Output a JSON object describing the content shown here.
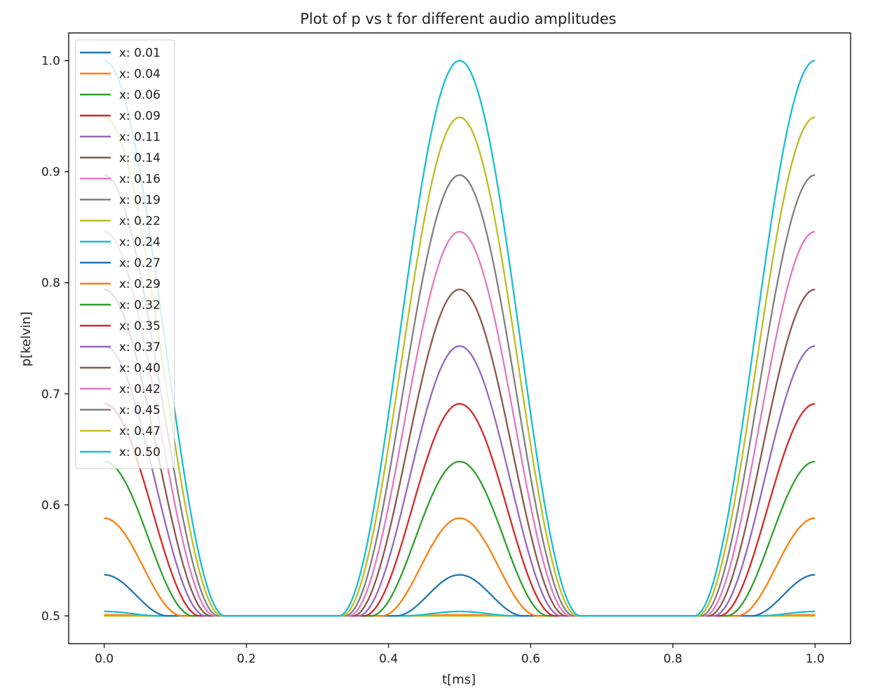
{
  "chart_data": {
    "type": "line",
    "title": "Plot of p vs t for different audio amplitudes",
    "xlabel": "t[ms]",
    "ylabel": "p[kelvin]",
    "xlim": [
      -0.05,
      1.05
    ],
    "ylim": [
      0.475,
      1.025
    ],
    "x_ticks": [
      "0.0",
      "0.2",
      "0.4",
      "0.6",
      "0.8",
      "1.0"
    ],
    "y_ticks": [
      "0.5",
      "0.6",
      "0.7",
      "0.8",
      "0.9",
      "1.0"
    ],
    "grid": false,
    "legend_position": "upper-left",
    "period": 0.5,
    "series": [
      {
        "name": "x: 0.01",
        "color": "#1f77b4",
        "peak": 0.5,
        "half_width": 0.08
      },
      {
        "name": "x: 0.04",
        "color": "#ff7f0e",
        "peak": 0.501,
        "half_width": 0.09
      },
      {
        "name": "x: 0.06",
        "color": "#2ca02c",
        "peak": 0.5,
        "half_width": 0.095
      },
      {
        "name": "x: 0.09",
        "color": "#d62728",
        "peak": 0.5,
        "half_width": 0.1
      },
      {
        "name": "x: 0.11",
        "color": "#9467bd",
        "peak": 0.5,
        "half_width": 0.1
      },
      {
        "name": "x: 0.14",
        "color": "#8c564b",
        "peak": 0.5,
        "half_width": 0.1
      },
      {
        "name": "x: 0.16",
        "color": "#e377c2",
        "peak": 0.5,
        "half_width": 0.1
      },
      {
        "name": "x: 0.19",
        "color": "#7f7f7f",
        "peak": 0.5,
        "half_width": 0.1
      },
      {
        "name": "x: 0.22",
        "color": "#bcbd22",
        "peak": 0.5,
        "half_width": 0.1
      },
      {
        "name": "x: 0.24",
        "color": "#17becf",
        "peak": 0.504,
        "half_width": 0.08
      },
      {
        "name": "x: 0.27",
        "color": "#1f77b4",
        "peak": 0.537,
        "half_width": 0.09
      },
      {
        "name": "x: 0.29",
        "color": "#ff7f0e",
        "peak": 0.588,
        "half_width": 0.11
      },
      {
        "name": "x: 0.32",
        "color": "#2ca02c",
        "peak": 0.639,
        "half_width": 0.125
      },
      {
        "name": "x: 0.35",
        "color": "#d62728",
        "peak": 0.691,
        "half_width": 0.135
      },
      {
        "name": "x: 0.37",
        "color": "#9467bd",
        "peak": 0.743,
        "half_width": 0.143
      },
      {
        "name": "x: 0.40",
        "color": "#8c564b",
        "peak": 0.794,
        "half_width": 0.15
      },
      {
        "name": "x: 0.42",
        "color": "#e377c2",
        "peak": 0.846,
        "half_width": 0.156
      },
      {
        "name": "x: 0.45",
        "color": "#7f7f7f",
        "peak": 0.897,
        "half_width": 0.161
      },
      {
        "name": "x: 0.47",
        "color": "#bcbd22",
        "peak": 0.949,
        "half_width": 0.166
      },
      {
        "name": "x: 0.50",
        "color": "#17becf",
        "peak": 1.0,
        "half_width": 0.17
      }
    ]
  }
}
